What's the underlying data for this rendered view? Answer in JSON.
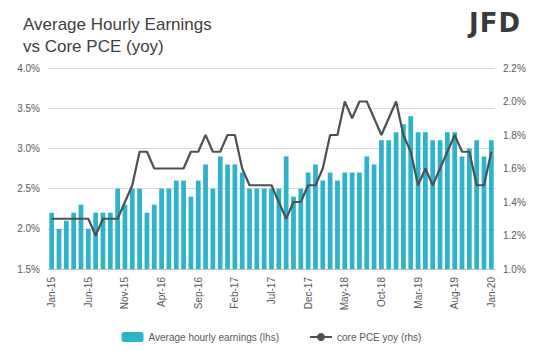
{
  "chart_data": {
    "type": "bar",
    "title": "Average Hourly Earnings\nvs Core PCE (yoy)",
    "logo": "JFD",
    "categories": [
      "Jan-15",
      null,
      null,
      null,
      null,
      "Jun-15",
      null,
      null,
      null,
      null,
      "Nov-15",
      null,
      null,
      null,
      null,
      "Apr-16",
      null,
      null,
      null,
      null,
      "Sep-16",
      null,
      null,
      null,
      null,
      "Feb-17",
      null,
      null,
      null,
      null,
      "Jul-17",
      null,
      null,
      null,
      null,
      "Dec-17",
      null,
      null,
      null,
      null,
      "May-18",
      null,
      null,
      null,
      null,
      "Oct-18",
      null,
      null,
      null,
      null,
      "Mar-19",
      null,
      null,
      null,
      null,
      "Aug-19",
      null,
      null,
      null,
      null,
      "Jan-20"
    ],
    "series": [
      {
        "name": "Average hourly earnings (lhs)",
        "type": "bar",
        "color": "#2fb3c8",
        "values": [
          2.2,
          2.0,
          2.1,
          2.2,
          2.3,
          2.0,
          2.2,
          2.2,
          2.2,
          2.5,
          2.3,
          2.5,
          2.5,
          2.2,
          2.3,
          2.5,
          2.5,
          2.6,
          2.6,
          2.4,
          2.6,
          2.8,
          2.5,
          2.9,
          2.8,
          2.8,
          2.7,
          2.5,
          2.5,
          2.5,
          2.5,
          2.5,
          2.9,
          2.4,
          2.5,
          2.7,
          2.8,
          2.6,
          2.7,
          2.6,
          2.7,
          2.7,
          2.7,
          2.9,
          2.8,
          3.1,
          3.1,
          3.2,
          3.3,
          3.4,
          3.2,
          3.2,
          3.1,
          3.1,
          3.2,
          3.2,
          2.9,
          3.0,
          3.1,
          2.9,
          3.1
        ]
      },
      {
        "name": "core PCE yoy (rhs)",
        "type": "line",
        "axis": "y2",
        "color": "#4b5157",
        "values": [
          1.3,
          1.3,
          1.3,
          1.3,
          1.3,
          1.3,
          1.2,
          1.3,
          1.3,
          1.3,
          1.4,
          1.5,
          1.7,
          1.7,
          1.6,
          1.6,
          1.6,
          1.6,
          1.6,
          1.7,
          1.7,
          1.8,
          1.7,
          1.7,
          1.8,
          1.8,
          1.6,
          1.5,
          1.5,
          1.5,
          1.5,
          1.4,
          1.3,
          1.4,
          1.4,
          1.5,
          1.5,
          1.6,
          1.8,
          1.8,
          2.0,
          1.9,
          2.0,
          2.0,
          1.9,
          1.8,
          1.9,
          2.0,
          1.8,
          1.7,
          1.5,
          1.6,
          1.5,
          1.6,
          1.7,
          1.8,
          1.7,
          1.7,
          1.5,
          1.5,
          1.7
        ]
      }
    ],
    "ylim": [
      1.5,
      4.0
    ],
    "yticks": [
      {
        "value": 1.5,
        "label": "1.5%"
      },
      {
        "value": 2.0,
        "label": "2.0%"
      },
      {
        "value": 2.5,
        "label": "2.5%"
      },
      {
        "value": 3.0,
        "label": "3.0%"
      },
      {
        "value": 3.5,
        "label": "3.5%"
      },
      {
        "value": 4.0,
        "label": "4.0%"
      }
    ],
    "y2lim": [
      1.0,
      2.2
    ],
    "y2ticks": [
      {
        "value": 1.0,
        "label": "1.0%"
      },
      {
        "value": 1.2,
        "label": "1.2%"
      },
      {
        "value": 1.4,
        "label": "1.4%"
      },
      {
        "value": 1.6,
        "label": "1.6%"
      },
      {
        "value": 1.8,
        "label": "1.8%"
      },
      {
        "value": 2.0,
        "label": "2.0%"
      },
      {
        "value": 2.2,
        "label": "2.2%"
      }
    ],
    "grid": true,
    "legend": "bottom"
  }
}
